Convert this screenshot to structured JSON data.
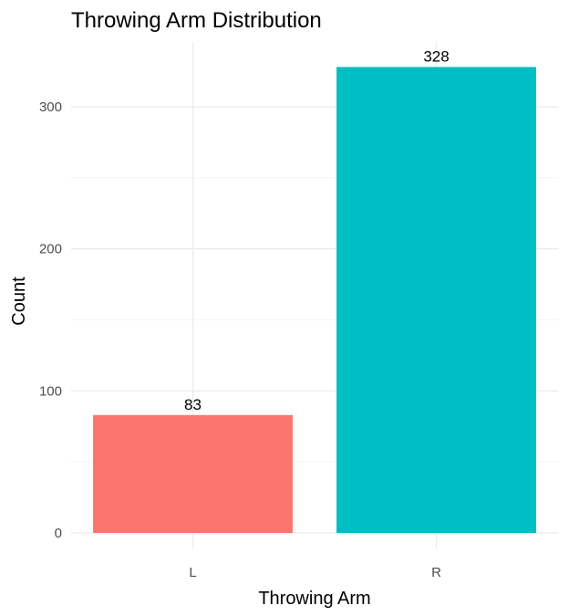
{
  "chart_data": {
    "type": "bar",
    "title": "Throwing Arm Distribution",
    "xlabel": "Throwing Arm",
    "ylabel": "Count",
    "categories": [
      "L",
      "R"
    ],
    "values": [
      83,
      328
    ],
    "data_labels": [
      "83",
      "328"
    ],
    "colors": [
      "#f8766d",
      "#00bfc4"
    ],
    "ylim": [
      0,
      344
    ],
    "y_ticks": [
      0,
      100,
      200,
      300
    ],
    "y_tick_labels": [
      "0",
      "100",
      "200",
      "300"
    ],
    "grid": true,
    "legend": "none"
  }
}
